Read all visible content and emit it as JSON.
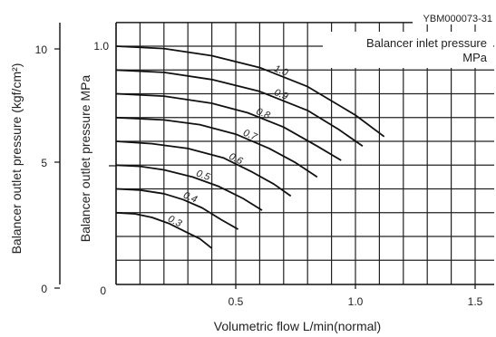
{
  "chart_data": {
    "type": "line",
    "figure_code": "YBM000073-31",
    "xlabel": "Volumetric flow L/min(normal)",
    "ylabel": "Balancer outlet pressure MPa",
    "y2label": "Balancer outlet pressure (kgf/cm²)",
    "legend_title_line1": "Balancer inlet pressure",
    "legend_title_line2": "MPa",
    "x_ticks": [
      "0.5",
      "1.0",
      "1.5"
    ],
    "y_ticks": [
      "0",
      "1.0"
    ],
    "y2_ticks": [
      "0",
      "5",
      "10"
    ],
    "xlim": [
      0,
      1.6
    ],
    "ylim": [
      -0.1,
      1.1
    ],
    "grid": true,
    "series": [
      {
        "name": "1.0",
        "x": [
          0,
          0.2,
          0.4,
          0.6,
          0.8,
          1.0,
          1.12
        ],
        "y": [
          1.0,
          0.99,
          0.96,
          0.91,
          0.83,
          0.71,
          0.62
        ]
      },
      {
        "name": "0.9",
        "x": [
          0,
          0.2,
          0.4,
          0.6,
          0.8,
          0.93,
          1.03
        ],
        "y": [
          0.9,
          0.89,
          0.86,
          0.81,
          0.73,
          0.65,
          0.58
        ]
      },
      {
        "name": "0.8",
        "x": [
          0,
          0.2,
          0.4,
          0.55,
          0.7,
          0.84,
          0.94
        ],
        "y": [
          0.8,
          0.79,
          0.76,
          0.72,
          0.66,
          0.58,
          0.52
        ]
      },
      {
        "name": "0.7",
        "x": [
          0,
          0.2,
          0.35,
          0.5,
          0.64,
          0.75,
          0.84
        ],
        "y": [
          0.7,
          0.69,
          0.67,
          0.63,
          0.57,
          0.51,
          0.45
        ]
      },
      {
        "name": "0.6",
        "x": [
          0,
          0.15,
          0.3,
          0.45,
          0.57,
          0.66,
          0.73
        ],
        "y": [
          0.6,
          0.59,
          0.57,
          0.53,
          0.47,
          0.42,
          0.37
        ]
      },
      {
        "name": "0.5",
        "x": [
          0,
          0.1,
          0.2,
          0.32,
          0.43,
          0.53,
          0.61
        ],
        "y": [
          0.5,
          0.495,
          0.48,
          0.45,
          0.41,
          0.36,
          0.31
        ]
      },
      {
        "name": "0.4",
        "x": [
          0,
          0.1,
          0.2,
          0.28,
          0.36,
          0.44,
          0.51
        ],
        "y": [
          0.4,
          0.395,
          0.38,
          0.355,
          0.32,
          0.27,
          0.23
        ]
      },
      {
        "name": "0.3",
        "x": [
          0,
          0.08,
          0.15,
          0.22,
          0.29,
          0.35,
          0.4
        ],
        "y": [
          0.3,
          0.295,
          0.28,
          0.255,
          0.22,
          0.19,
          0.15
        ]
      }
    ]
  }
}
